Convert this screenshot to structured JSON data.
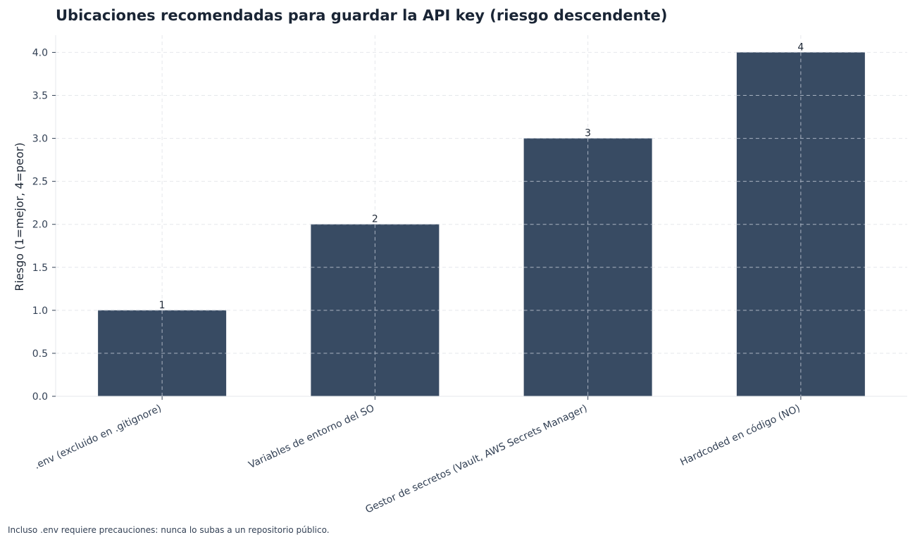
{
  "chart_data": {
    "type": "bar",
    "title": "Ubicaciones recomendadas para guardar la API key (riesgo descendente)",
    "xlabel": "",
    "ylabel": "Riesgo (1=mejor, 4=peor)",
    "categories": [
      ".env (excluido en .gitignore)",
      "Variables de entorno del SO",
      "Gestor de secretos (Vault, AWS Secrets Manager)",
      "Hardcoded en código (NO)"
    ],
    "values": [
      1,
      2,
      3,
      4
    ],
    "data_labels": [
      "1",
      "2",
      "3",
      "4"
    ],
    "ylim": [
      0,
      4.2
    ],
    "yticks": [
      "0.0",
      "0.5",
      "1.0",
      "1.5",
      "2.0",
      "2.5",
      "3.0",
      "3.5",
      "4.0"
    ],
    "grid": true,
    "bar_color": "#384b63",
    "footnote": "Incluso .env requiere precauciones: nunca lo subas a un repositorio público."
  }
}
